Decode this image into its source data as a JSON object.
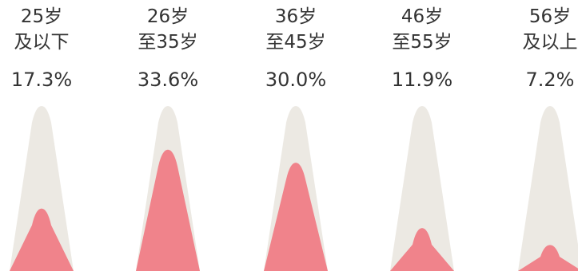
{
  "chart_data": {
    "type": "bar",
    "categories": [
      [
        "25岁",
        "及以下"
      ],
      [
        "26岁",
        "至35岁"
      ],
      [
        "36岁",
        "至45岁"
      ],
      [
        "46岁",
        "至55岁"
      ],
      [
        "56岁",
        "及以上"
      ]
    ],
    "values": [
      17.3,
      33.6,
      30.0,
      11.9,
      7.2
    ],
    "value_labels": [
      "17.3%",
      "33.6%",
      "30.0%",
      "11.9%",
      "7.2%"
    ],
    "unit": "%",
    "ylim": [
      0,
      45.7
    ],
    "colors": {
      "bar": "#f0838b",
      "track": "#ece9e3",
      "text": "#333333",
      "background": "#ffffff"
    }
  }
}
